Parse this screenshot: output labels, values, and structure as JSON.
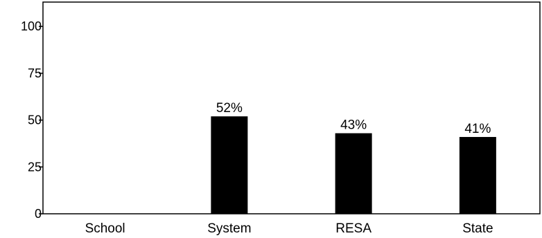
{
  "chart_data": {
    "type": "bar",
    "categories": [
      "School",
      "System",
      "RESA",
      "State"
    ],
    "values": [
      null,
      52,
      43,
      41
    ],
    "data_labels": [
      "",
      "52%",
      "43%",
      "41%"
    ],
    "title": "",
    "xlabel": "",
    "ylabel": "",
    "ylim": [
      0,
      113
    ],
    "yticks": [
      0,
      25,
      50,
      75,
      100
    ],
    "grid": false,
    "bar_color": "#000000"
  }
}
